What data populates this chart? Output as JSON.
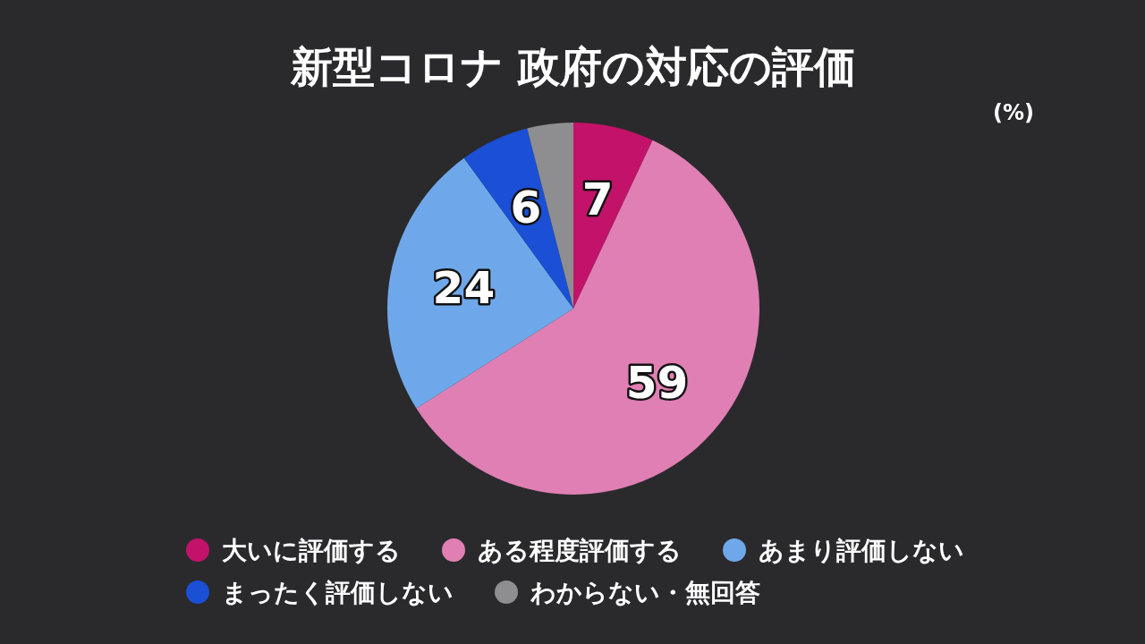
{
  "chart_data": {
    "type": "pie",
    "title": "新型コロナ 政府の対応の評価",
    "categories": [
      "大いに評価する",
      "ある程度評価する",
      "あまり評価しない",
      "まったく評価しない",
      "わからない・無回答"
    ],
    "values": [
      7,
      59,
      24,
      6,
      4
    ],
    "colors": [
      "#c2126a",
      "#e07fb4",
      "#6fa8ea",
      "#1a4fd6",
      "#8e8e90"
    ],
    "value_labels": [
      "7",
      "59",
      "24",
      "6",
      null
    ],
    "legend": "bottom",
    "annotations": [
      "(%)"
    ]
  }
}
